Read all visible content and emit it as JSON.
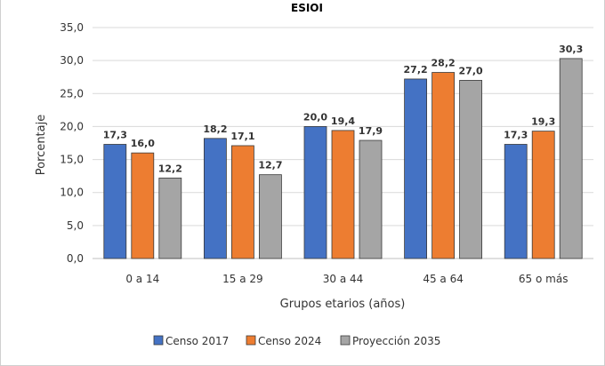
{
  "chart_data": {
    "type": "bar",
    "title": "ESIOI",
    "xlabel": "Grupos etarios (años)",
    "ylabel": "Porcentaje",
    "ylim": [
      0,
      35
    ],
    "yticks": [
      "0,0",
      "5,0",
      "10,0",
      "15,0",
      "20,0",
      "25,0",
      "30,0",
      "35,0"
    ],
    "categories": [
      "0 a 14",
      "15 a 29",
      "30 a 44",
      "45 a 64",
      "65 o más"
    ],
    "series": [
      {
        "name": "Censo 2017",
        "color": "#4472c4",
        "values": [
          17.3,
          18.2,
          20.0,
          27.2,
          17.3
        ],
        "labels": [
          "17,3",
          "18,2",
          "20,0",
          "27,2",
          "17,3"
        ]
      },
      {
        "name": "Censo 2024",
        "color": "#ed7d31",
        "values": [
          16.0,
          17.1,
          19.4,
          28.2,
          19.3
        ],
        "labels": [
          "16,0",
          "17,1",
          "19,4",
          "28,2",
          "19,3"
        ]
      },
      {
        "name": "Proyección 2035",
        "color": "#a5a5a5",
        "values": [
          12.2,
          12.7,
          17.9,
          27.0,
          30.3
        ],
        "labels": [
          "12,2",
          "12,7",
          "17,9",
          "27,0",
          "30,3"
        ]
      }
    ],
    "grid": true,
    "legend": "bottom"
  }
}
